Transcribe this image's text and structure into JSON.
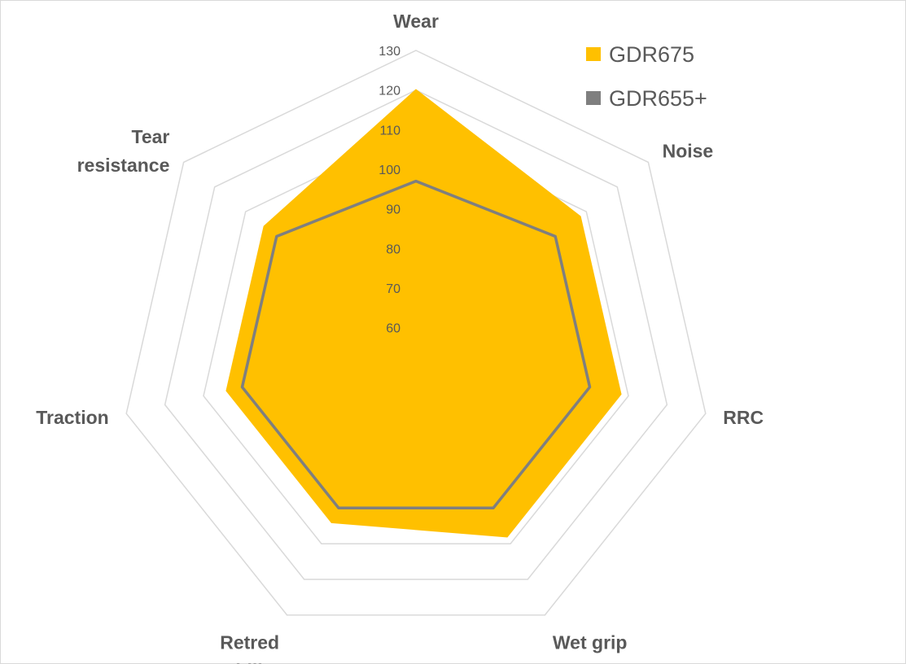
{
  "chart_data": {
    "type": "radar",
    "categories": [
      "Wear",
      "Noise",
      "RRC",
      "Wet grip",
      "Retred ability",
      "Traction",
      "Tear resistance"
    ],
    "category_lines": [
      [
        "Wear"
      ],
      [
        "Noise"
      ],
      [
        "RRC"
      ],
      [
        "Wet grip"
      ],
      [
        "Retred",
        "ability"
      ],
      [
        "Traction"
      ],
      [
        "Tear",
        "resistance"
      ]
    ],
    "r_ticks": [
      "60",
      "70",
      "80",
      "90",
      "100",
      "110",
      "120",
      "130"
    ],
    "r_min": 55,
    "r_max": 130,
    "series": [
      {
        "name": "GDR675",
        "color": "#FFC000",
        "style": "filled",
        "values": [
          120,
          108,
          108,
          108,
          104,
          104,
          104
        ]
      },
      {
        "name": "GDR655+",
        "color": "#7F7F7F",
        "style": "line",
        "values": [
          97,
          100,
          100,
          100,
          100,
          100,
          100
        ]
      }
    ],
    "legend_position": "top-right",
    "grid": true
  }
}
